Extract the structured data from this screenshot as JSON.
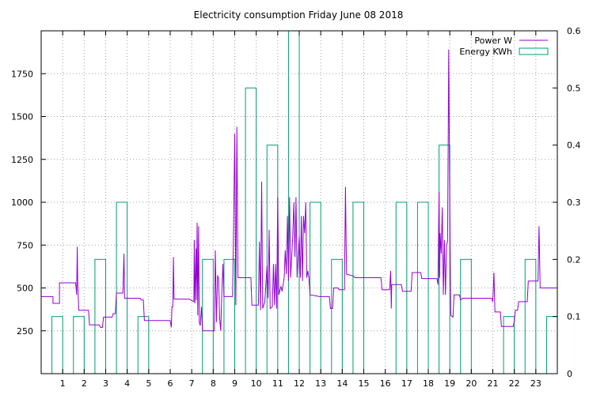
{
  "chart_data": {
    "type": "bar",
    "title": "Electricity consumption Friday June 08 2018",
    "xlabel": "",
    "ylabel": "",
    "xlim": [
      0,
      24
    ],
    "ylim": [
      0,
      2000
    ],
    "y2lim": [
      0,
      0.6
    ],
    "x_ticks": [
      1,
      2,
      3,
      4,
      5,
      6,
      7,
      8,
      9,
      10,
      11,
      12,
      13,
      14,
      15,
      16,
      17,
      18,
      19,
      20,
      21,
      22,
      23
    ],
    "y_ticks": [
      250,
      500,
      750,
      1000,
      1250,
      1500,
      1750
    ],
    "y2_ticks": [
      0,
      0.1,
      0.2,
      0.3,
      0.4,
      0.5,
      0.6
    ],
    "grid": true,
    "legend_position": "top-right",
    "series": [
      {
        "name": "Energy KWh",
        "type": "bar",
        "axis": "y2",
        "color": "#009e73",
        "values": [
          0.1,
          0.1,
          0.2,
          0.3,
          0.1,
          0,
          0,
          0.2,
          0.2,
          0.5,
          0.4,
          0.6,
          0.3,
          0.2,
          0.3,
          0,
          0.3,
          0.3,
          0.4,
          0.2,
          0,
          0.1,
          0.2,
          0.1
        ]
      },
      {
        "name": "Power W",
        "type": "line",
        "axis": "y",
        "color": "#9400d3",
        "points": [
          [
            0,
            450
          ],
          [
            0.55,
            450
          ],
          [
            0.55,
            410
          ],
          [
            0.85,
            410
          ],
          [
            0.85,
            530
          ],
          [
            1.6,
            530
          ],
          [
            1.65,
            460
          ],
          [
            1.68,
            740
          ],
          [
            1.7,
            530
          ],
          [
            1.75,
            370
          ],
          [
            2.2,
            370
          ],
          [
            2.25,
            285
          ],
          [
            2.7,
            285
          ],
          [
            2.75,
            270
          ],
          [
            2.85,
            270
          ],
          [
            2.9,
            330
          ],
          [
            3.3,
            330
          ],
          [
            3.35,
            350
          ],
          [
            3.45,
            350
          ],
          [
            3.5,
            470
          ],
          [
            3.8,
            470
          ],
          [
            3.85,
            700
          ],
          [
            3.88,
            440
          ],
          [
            4.6,
            440
          ],
          [
            4.65,
            430
          ],
          [
            4.75,
            430
          ],
          [
            4.8,
            310
          ],
          [
            6.0,
            310
          ],
          [
            6.05,
            270
          ],
          [
            6.08,
            390
          ],
          [
            6.12,
            390
          ],
          [
            6.15,
            680
          ],
          [
            6.18,
            435
          ],
          [
            6.9,
            435
          ],
          [
            6.95,
            430
          ],
          [
            7.1,
            420
          ],
          [
            7.12,
            780
          ],
          [
            7.15,
            410
          ],
          [
            7.2,
            730
          ],
          [
            7.22,
            430
          ],
          [
            7.25,
            880
          ],
          [
            7.28,
            340
          ],
          [
            7.32,
            860
          ],
          [
            7.35,
            300
          ],
          [
            7.4,
            280
          ],
          [
            7.45,
            390
          ],
          [
            7.5,
            250
          ],
          [
            7.95,
            250
          ],
          [
            8.05,
            250
          ],
          [
            8.1,
            720
          ],
          [
            8.15,
            300
          ],
          [
            8.2,
            570
          ],
          [
            8.25,
            560
          ],
          [
            8.3,
            320
          ],
          [
            8.35,
            250
          ],
          [
            8.4,
            470
          ],
          [
            8.45,
            640
          ],
          [
            8.5,
            450
          ],
          [
            8.9,
            450
          ],
          [
            8.95,
            870
          ],
          [
            9.0,
            1400
          ],
          [
            9.05,
            400
          ],
          [
            9.1,
            1440
          ],
          [
            9.15,
            560
          ],
          [
            9.75,
            560
          ],
          [
            9.8,
            400
          ],
          [
            10.1,
            400
          ],
          [
            10.15,
            770
          ],
          [
            10.2,
            370
          ],
          [
            10.25,
            1120
          ],
          [
            10.3,
            380
          ],
          [
            10.4,
            420
          ],
          [
            10.5,
            630
          ],
          [
            10.55,
            440
          ],
          [
            10.6,
            840
          ],
          [
            10.65,
            380
          ],
          [
            10.75,
            390
          ],
          [
            10.8,
            640
          ],
          [
            10.85,
            400
          ],
          [
            10.9,
            640
          ],
          [
            10.95,
            380
          ],
          [
            11.0,
            1030
          ],
          [
            11.05,
            460
          ],
          [
            11.15,
            510
          ],
          [
            11.2,
            480
          ],
          [
            11.3,
            560
          ],
          [
            11.35,
            720
          ],
          [
            11.4,
            580
          ],
          [
            11.45,
            920
          ],
          [
            11.5,
            540
          ],
          [
            11.55,
            1030
          ],
          [
            11.6,
            560
          ],
          [
            11.7,
            800
          ],
          [
            11.75,
            1000
          ],
          [
            11.8,
            680
          ],
          [
            11.85,
            1030
          ],
          [
            11.9,
            560
          ],
          [
            12.0,
            800
          ],
          [
            12.05,
            560
          ],
          [
            12.1,
            920
          ],
          [
            12.15,
            540
          ],
          [
            12.2,
            920
          ],
          [
            12.25,
            820
          ],
          [
            12.3,
            1000
          ],
          [
            12.35,
            560
          ],
          [
            12.4,
            600
          ],
          [
            12.45,
            560
          ],
          [
            12.5,
            460
          ],
          [
            12.95,
            450
          ],
          [
            13.4,
            450
          ],
          [
            13.45,
            380
          ],
          [
            13.55,
            380
          ],
          [
            13.6,
            500
          ],
          [
            13.8,
            500
          ],
          [
            13.85,
            490
          ],
          [
            14.1,
            490
          ],
          [
            14.15,
            1090
          ],
          [
            14.18,
            770
          ],
          [
            14.2,
            580
          ],
          [
            14.5,
            570
          ],
          [
            14.6,
            560
          ],
          [
            15.8,
            560
          ],
          [
            15.85,
            490
          ],
          [
            16.2,
            490
          ],
          [
            16.25,
            600
          ],
          [
            16.28,
            380
          ],
          [
            16.3,
            520
          ],
          [
            16.75,
            520
          ],
          [
            16.8,
            480
          ],
          [
            17.2,
            480
          ],
          [
            17.25,
            590
          ],
          [
            17.65,
            590
          ],
          [
            17.7,
            555
          ],
          [
            18.4,
            555
          ],
          [
            18.45,
            520
          ],
          [
            18.5,
            1060
          ],
          [
            18.53,
            560
          ],
          [
            18.55,
            820
          ],
          [
            18.6,
            700
          ],
          [
            18.65,
            970
          ],
          [
            18.7,
            460
          ],
          [
            18.75,
            780
          ],
          [
            18.8,
            460
          ],
          [
            18.85,
            750
          ],
          [
            18.9,
            770
          ],
          [
            18.95,
            1890
          ],
          [
            19.0,
            940
          ],
          [
            19.05,
            340
          ],
          [
            19.15,
            330
          ],
          [
            19.2,
            460
          ],
          [
            19.45,
            460
          ],
          [
            19.5,
            430
          ],
          [
            19.6,
            440
          ],
          [
            20.95,
            440
          ],
          [
            21.0,
            420
          ],
          [
            21.05,
            590
          ],
          [
            21.1,
            360
          ],
          [
            21.35,
            360
          ],
          [
            21.4,
            275
          ],
          [
            21.95,
            275
          ],
          [
            22.0,
            310
          ],
          [
            22.05,
            370
          ],
          [
            22.15,
            370
          ],
          [
            22.2,
            420
          ],
          [
            22.6,
            420
          ],
          [
            22.65,
            540
          ],
          [
            23.1,
            540
          ],
          [
            23.15,
            860
          ],
          [
            23.2,
            500
          ],
          [
            24,
            500
          ]
        ]
      }
    ]
  }
}
